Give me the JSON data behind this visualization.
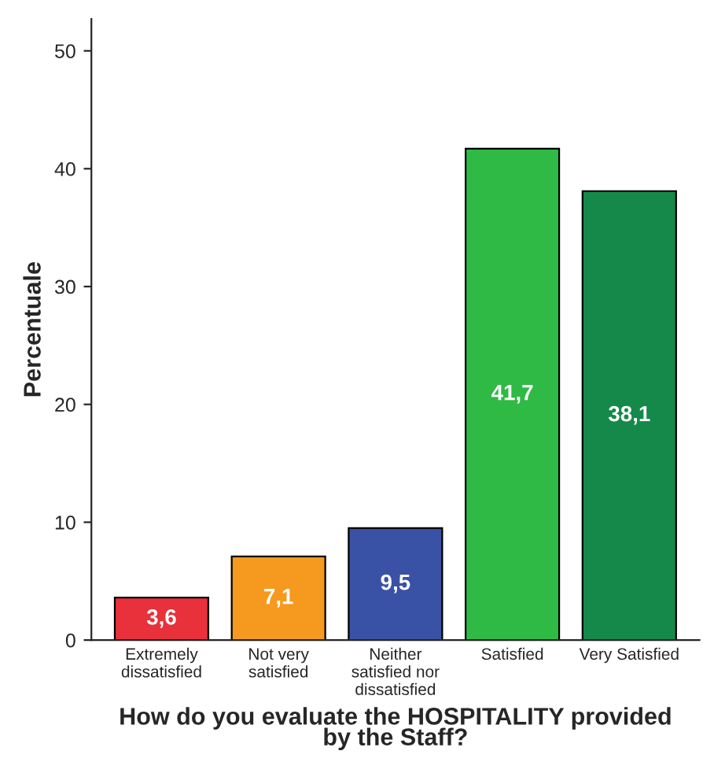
{
  "chart_data": {
    "type": "bar",
    "categories": [
      "Extremely\ndissatisfied",
      "Not very\nsatisfied",
      "Neither\nsatisfied nor\ndissatisfied",
      "Satisfied",
      "Very Satisfied"
    ],
    "values": [
      3.6,
      7.1,
      9.5,
      41.7,
      38.1
    ],
    "value_labels": [
      "3,6",
      "7,1",
      "9,5",
      "41,7",
      "38,1"
    ],
    "colors": [
      "#e8313a",
      "#f59a1f",
      "#3a52a5",
      "#2fba45",
      "#14894a"
    ],
    "xlabel": "How do you evaluate the HOSPITALITY provided\nby the Staff?",
    "ylabel": "Percentuale",
    "ylim": [
      0,
      52.7
    ],
    "yticks": [
      0,
      10,
      20,
      30,
      40,
      50
    ],
    "grid": false
  }
}
